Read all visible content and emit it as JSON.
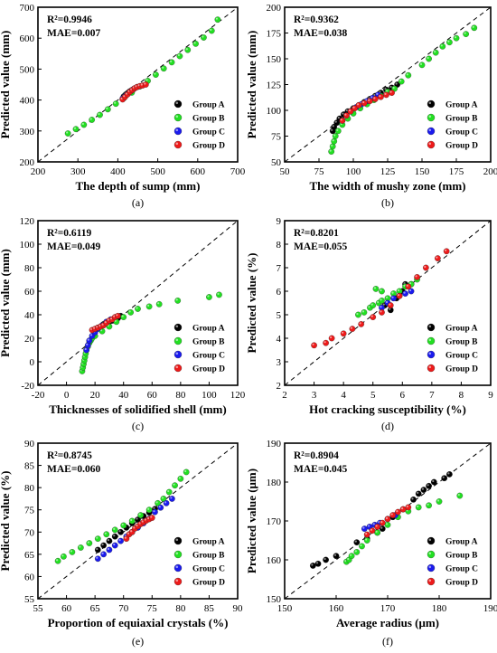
{
  "colors": {
    "Group A": "#000000",
    "Group B": "#22e022",
    "Group C": "#1a1aee",
    "Group D": "#ee1a1a"
  },
  "chart_data": [
    {
      "type": "scatter",
      "caption": "(a)",
      "xlabel": "The depth of sump (mm)",
      "ylabel": "Predicted value (mm)",
      "xlim": [
        200,
        700
      ],
      "ylim": [
        200,
        700
      ],
      "xticks": [
        200,
        300,
        400,
        500,
        600,
        700
      ],
      "yticks": [
        200,
        300,
        400,
        500,
        600,
        700
      ],
      "annotations": [
        "R²=0.9946",
        "MAE=0.007"
      ],
      "legend": [
        "Group A",
        "Group B",
        "Group C",
        "Group D"
      ],
      "legend_position": "bottom-right",
      "series": [
        {
          "name": "Group A",
          "x": [
            415,
            420,
            425,
            430,
            435,
            440
          ],
          "y": [
            412,
            418,
            423,
            428,
            432,
            436
          ]
        },
        {
          "name": "Group B",
          "x": [
            275,
            295,
            315,
            335,
            355,
            375,
            395,
            415,
            435,
            455,
            475,
            495,
            515,
            535,
            555,
            575,
            595,
            615,
            635,
            650
          ],
          "y": [
            292,
            306,
            320,
            336,
            352,
            370,
            388,
            406,
            424,
            444,
            462,
            482,
            502,
            522,
            542,
            562,
            582,
            602,
            624,
            660
          ]
        },
        {
          "name": "Group C",
          "x": [
            412,
            418,
            425,
            432,
            440,
            448
          ],
          "y": [
            405,
            412,
            420,
            428,
            436,
            442
          ]
        },
        {
          "name": "Group D",
          "x": [
            412,
            418,
            424,
            430,
            436,
            442,
            448,
            455,
            462,
            470
          ],
          "y": [
            402,
            410,
            418,
            426,
            432,
            438,
            442,
            445,
            447,
            450
          ]
        }
      ]
    },
    {
      "type": "scatter",
      "caption": "(b)",
      "xlabel": "The width of mushy zone (mm)",
      "ylabel": "Predicted value (mm)",
      "xlim": [
        50,
        200
      ],
      "ylim": [
        50,
        200
      ],
      "xticks": [
        50,
        75,
        100,
        125,
        150,
        175,
        200
      ],
      "yticks": [
        50,
        75,
        100,
        125,
        150,
        175,
        200
      ],
      "annotations": [
        "R²=0.9362",
        "MAE=0.038"
      ],
      "legend": [
        "Group A",
        "Group B",
        "Group C",
        "Group D"
      ],
      "legend_position": "bottom-right",
      "series": [
        {
          "name": "Group A",
          "x": [
            85,
            86,
            88,
            90,
            93,
            96,
            100,
            104,
            108,
            112,
            116,
            120,
            124,
            128,
            132
          ],
          "y": [
            80,
            84,
            88,
            92,
            96,
            99,
            102,
            105,
            108,
            111,
            114,
            117,
            120,
            122,
            125
          ]
        },
        {
          "name": "Group B",
          "x": [
            84,
            85,
            86,
            87,
            89,
            92,
            96,
            100,
            105,
            110,
            115,
            120,
            125,
            130,
            135,
            140,
            150,
            155,
            160,
            165,
            170,
            175,
            182,
            188
          ],
          "y": [
            60,
            65,
            70,
            75,
            80,
            86,
            92,
            97,
            102,
            106,
            110,
            114,
            118,
            121,
            128,
            134,
            144,
            150,
            156,
            162,
            166,
            170,
            174,
            180
          ]
        },
        {
          "name": "Group C",
          "x": [
            92,
            95,
            98,
            102,
            106,
            110,
            114,
            118
          ],
          "y": [
            90,
            95,
            99,
            103,
            106,
            109,
            112,
            115
          ]
        },
        {
          "name": "Group D",
          "x": [
            92,
            95,
            98,
            101,
            104,
            108,
            112,
            116,
            120,
            124,
            128
          ],
          "y": [
            90,
            95,
            99,
            102,
            105,
            107,
            109,
            111,
            113,
            115,
            117
          ]
        }
      ]
    },
    {
      "type": "scatter",
      "caption": "(c)",
      "xlabel": "Thicknesses of solidified shell (mm)",
      "ylabel": "Predicted value (mm)",
      "xlim": [
        -20,
        120
      ],
      "ylim": [
        -20,
        120
      ],
      "xticks": [
        -20,
        0,
        20,
        40,
        60,
        80,
        100,
        120
      ],
      "yticks": [
        -20,
        0,
        20,
        40,
        60,
        80,
        100,
        120
      ],
      "annotations": [
        "R²=0.6119",
        "MAE=0.049"
      ],
      "legend": [
        "Group A",
        "Group B",
        "Group C",
        "Group D"
      ],
      "legend_position": "bottom-right",
      "series": [
        {
          "name": "Group A",
          "x": [
            20,
            22,
            24,
            26,
            28,
            30,
            32,
            34,
            36,
            38
          ],
          "y": [
            27,
            29,
            30,
            32,
            33,
            34,
            35,
            36,
            37,
            39
          ]
        },
        {
          "name": "Group B",
          "x": [
            11,
            11.5,
            12,
            12.5,
            13,
            13.5,
            14,
            15,
            16,
            17,
            18,
            20,
            25,
            30,
            35,
            40,
            45,
            50,
            58,
            65,
            78,
            100,
            107
          ],
          "y": [
            -8,
            -5,
            -2,
            1,
            4,
            7,
            10,
            13,
            16,
            18,
            20,
            22,
            26,
            30,
            34,
            38,
            42,
            45,
            47,
            49,
            52,
            55,
            57
          ]
        },
        {
          "name": "Group C",
          "x": [
            14,
            15,
            16,
            18,
            20,
            22,
            25,
            28,
            31
          ],
          "y": [
            10,
            14,
            18,
            22,
            25,
            28,
            31,
            34,
            36
          ]
        },
        {
          "name": "Group D",
          "x": [
            18,
            20,
            22,
            24,
            26,
            28,
            30,
            32,
            34,
            36
          ],
          "y": [
            27,
            28,
            29,
            30,
            31,
            33,
            35,
            36,
            38,
            39
          ]
        }
      ]
    },
    {
      "type": "scatter",
      "caption": "(d)",
      "xlabel": "Hot cracking susceptibility (%)",
      "ylabel": "Predicted value (%)",
      "xlim": [
        2,
        9
      ],
      "ylim": [
        2,
        9
      ],
      "xticks": [
        2,
        3,
        4,
        5,
        6,
        7,
        8,
        9
      ],
      "yticks": [
        2,
        3,
        4,
        5,
        6,
        7,
        8,
        9
      ],
      "annotations": [
        "R²=0.8201",
        "MAE=0.055"
      ],
      "legend": [
        "Group A",
        "Group B",
        "Group C",
        "Group D"
      ],
      "legend_position": "bottom-right",
      "series": [
        {
          "name": "Group A",
          "x": [
            5.4,
            5.6,
            5.8,
            6.0,
            6.1,
            6.3
          ],
          "y": [
            5.4,
            5.2,
            5.7,
            6.0,
            6.3,
            6.3
          ]
        },
        {
          "name": "Group B",
          "x": [
            4.5,
            4.7,
            4.9,
            5.0,
            5.2,
            5.3,
            5.5,
            5.7,
            5.9,
            6.1,
            6.3,
            6.5,
            5.1,
            5.3
          ],
          "y": [
            5.0,
            5.1,
            5.3,
            5.4,
            5.5,
            5.6,
            5.7,
            5.9,
            6.0,
            6.2,
            6.3,
            6.5,
            6.1,
            6.0
          ]
        },
        {
          "name": "Group C",
          "x": [
            5.3,
            5.5,
            5.7,
            5.9,
            6.1,
            6.3
          ],
          "y": [
            5.3,
            5.5,
            5.7,
            5.8,
            5.9,
            6.0
          ]
        },
        {
          "name": "Group D",
          "x": [
            3.0,
            3.4,
            3.6,
            4.0,
            4.3,
            4.6,
            5.0,
            5.3,
            5.6,
            5.9,
            6.2,
            6.5,
            6.8,
            7.2,
            7.5
          ],
          "y": [
            3.7,
            3.8,
            4.0,
            4.2,
            4.4,
            4.6,
            4.9,
            5.1,
            5.4,
            5.8,
            6.2,
            6.6,
            7.0,
            7.4,
            7.7
          ]
        }
      ]
    },
    {
      "type": "scatter",
      "caption": "(e)",
      "xlabel": "Proportion of equiaxial crystals (%)",
      "ylabel": "Predicted value (%)",
      "xlim": [
        55,
        90
      ],
      "ylim": [
        55,
        90
      ],
      "xticks": [
        55,
        60,
        65,
        70,
        75,
        80,
        85,
        90
      ],
      "yticks": [
        55,
        60,
        65,
        70,
        75,
        80,
        85,
        90
      ],
      "annotations": [
        "R²=0.8745",
        "MAE=0.060"
      ],
      "legend": [
        "Group A",
        "Group B",
        "Group C",
        "Group D"
      ],
      "legend_position": "bottom-right",
      "series": [
        {
          "name": "Group A",
          "x": [
            65.5,
            66.5,
            67.5,
            68.5,
            69.5,
            70.5,
            71.5,
            72.5,
            73.5,
            74.5,
            75.5
          ],
          "y": [
            66,
            67,
            68,
            69,
            70,
            71,
            72,
            72.8,
            73.6,
            74.4,
            75.2
          ]
        },
        {
          "name": "Group B",
          "x": [
            58.5,
            59.5,
            61,
            62.5,
            64,
            65.5,
            67,
            68.5,
            70,
            71.5,
            73,
            74.5,
            76,
            77,
            78,
            79,
            80,
            81
          ],
          "y": [
            63.5,
            64.5,
            65.5,
            66.5,
            67.5,
            68.5,
            69.5,
            70.5,
            71.5,
            72.5,
            73.8,
            75,
            76.5,
            77.5,
            79,
            80.5,
            82,
            83.5
          ]
        },
        {
          "name": "Group C",
          "x": [
            65.5,
            66.5,
            67.5,
            68.5,
            69.5,
            70.5,
            71.5,
            72.5,
            73.5,
            74.5,
            75.5,
            76.5,
            77.5,
            78.5
          ],
          "y": [
            64,
            65,
            66,
            67,
            68,
            69,
            70,
            71,
            72,
            73,
            74.5,
            75.5,
            76.5,
            77.5
          ]
        },
        {
          "name": "Group D",
          "x": [
            70.5,
            71,
            71.5,
            72,
            72.5,
            73,
            73.5,
            74,
            74.5,
            75
          ],
          "y": [
            68.5,
            69.5,
            70,
            70.8,
            71.3,
            71.8,
            72.2,
            72.6,
            72.9,
            73.2
          ]
        }
      ]
    },
    {
      "type": "scatter",
      "caption": "(f)",
      "xlabel": "Average radius (μm)",
      "ylabel": "Predicted value (μm)",
      "xlim": [
        150,
        190
      ],
      "ylim": [
        150,
        190
      ],
      "xticks": [
        150,
        160,
        170,
        180,
        190
      ],
      "yticks": [
        150,
        160,
        170,
        180,
        190
      ],
      "annotations": [
        "R²=0.8904",
        "MAE=0.045"
      ],
      "legend": [
        "Group A",
        "Group B",
        "Group C",
        "Group D"
      ],
      "legend_position": "bottom-right",
      "series": [
        {
          "name": "Group A",
          "x": [
            155.5,
            156.5,
            158,
            160,
            164,
            166,
            168,
            169,
            171,
            173,
            175,
            176,
            177,
            178,
            179,
            181,
            182
          ],
          "y": [
            158.5,
            159,
            160,
            161,
            164.5,
            165.5,
            167,
            168,
            171,
            173,
            175.5,
            177,
            178,
            179,
            180,
            181,
            182
          ]
        },
        {
          "name": "Group B",
          "x": [
            162,
            162.5,
            163,
            164,
            165,
            166,
            168,
            170,
            172,
            174,
            176,
            178,
            180,
            184
          ],
          "y": [
            159.5,
            160,
            161,
            162,
            163.5,
            165,
            167,
            169,
            171,
            172.5,
            173.5,
            174,
            175,
            176.5
          ]
        },
        {
          "name": "Group C",
          "x": [
            165.5,
            166.5,
            167.5,
            168.5,
            170,
            171.5
          ],
          "y": [
            168,
            168.5,
            169,
            169.5,
            170.5,
            171.5
          ]
        },
        {
          "name": "Group D",
          "x": [
            166,
            167,
            168,
            169,
            170,
            171,
            172,
            173,
            174
          ],
          "y": [
            166.5,
            167.5,
            168.5,
            169.5,
            170.5,
            171.5,
            172.3,
            173,
            173.5
          ]
        }
      ]
    }
  ]
}
